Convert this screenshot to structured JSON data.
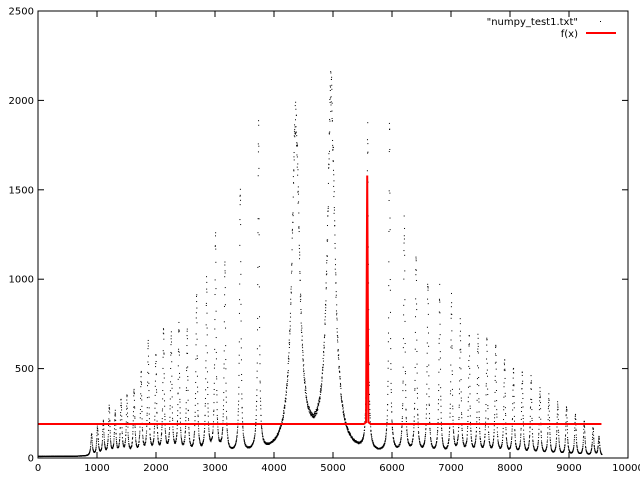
{
  "chart_data": {
    "type": "scatter",
    "title": "",
    "xlabel": "",
    "ylabel": "",
    "xlim": [
      0,
      10000
    ],
    "ylim": [
      0,
      2500
    ],
    "x_ticks": [
      0,
      1000,
      2000,
      3000,
      4000,
      5000,
      6000,
      7000,
      8000,
      9000,
      10000
    ],
    "x_tick_labels": [
      "0",
      "1000",
      "2000",
      "3000",
      "4000",
      "5000",
      "6000",
      "7000",
      "8000",
      "9000",
      "10000"
    ],
    "y_ticks": [
      0,
      500,
      1000,
      1500,
      2000,
      2500
    ],
    "y_tick_labels": [
      "0",
      "500",
      "1000",
      "1500",
      "2000",
      "2500"
    ],
    "grid": false,
    "legend_position": "top-right",
    "x_range": [
      0,
      9550
    ],
    "baseline": 10,
    "series": [
      {
        "name": "\"numpy_test1.txt\"",
        "style": "dots",
        "color": "#000000",
        "peaks": [
          {
            "x": 900,
            "y": 130
          },
          {
            "x": 1000,
            "y": 170
          },
          {
            "x": 1100,
            "y": 200
          },
          {
            "x": 1200,
            "y": 280
          },
          {
            "x": 1300,
            "y": 250
          },
          {
            "x": 1400,
            "y": 320
          },
          {
            "x": 1500,
            "y": 330
          },
          {
            "x": 1620,
            "y": 380
          },
          {
            "x": 1740,
            "y": 450
          },
          {
            "x": 1860,
            "y": 630
          },
          {
            "x": 1990,
            "y": 560
          },
          {
            "x": 2120,
            "y": 700
          },
          {
            "x": 2250,
            "y": 700
          },
          {
            "x": 2380,
            "y": 720
          },
          {
            "x": 2520,
            "y": 680
          },
          {
            "x": 2680,
            "y": 880
          },
          {
            "x": 2850,
            "y": 960
          },
          {
            "x": 3000,
            "y": 1200
          },
          {
            "x": 3160,
            "y": 1060
          },
          {
            "x": 3420,
            "y": 1500
          },
          {
            "x": 3730,
            "y": 1820
          },
          {
            "x": 4360,
            "y": 1890
          },
          {
            "x": 4960,
            "y": 2060
          },
          {
            "x": 5580,
            "y": 1800
          },
          {
            "x": 5950,
            "y": 1800
          },
          {
            "x": 6200,
            "y": 1300
          },
          {
            "x": 6400,
            "y": 1160
          },
          {
            "x": 6600,
            "y": 1000
          },
          {
            "x": 6800,
            "y": 920
          },
          {
            "x": 7000,
            "y": 860
          },
          {
            "x": 7150,
            "y": 740
          },
          {
            "x": 7300,
            "y": 650
          },
          {
            "x": 7450,
            "y": 660
          },
          {
            "x": 7600,
            "y": 640
          },
          {
            "x": 7750,
            "y": 620
          },
          {
            "x": 7900,
            "y": 550
          },
          {
            "x": 8050,
            "y": 500
          },
          {
            "x": 8200,
            "y": 470
          },
          {
            "x": 8350,
            "y": 440
          },
          {
            "x": 8500,
            "y": 380
          },
          {
            "x": 8650,
            "y": 340
          },
          {
            "x": 8800,
            "y": 300
          },
          {
            "x": 8950,
            "y": 290
          },
          {
            "x": 9100,
            "y": 240
          },
          {
            "x": 9250,
            "y": 200
          },
          {
            "x": 9400,
            "y": 170
          },
          {
            "x": 9500,
            "y": 120
          }
        ]
      },
      {
        "name": "f(x)",
        "style": "line",
        "color": "#ff0000",
        "x": [
          0,
          5520,
          5560,
          5580,
          5600,
          5640,
          9550
        ],
        "y": [
          190,
          190,
          200,
          1580,
          200,
          190,
          190
        ]
      }
    ]
  }
}
